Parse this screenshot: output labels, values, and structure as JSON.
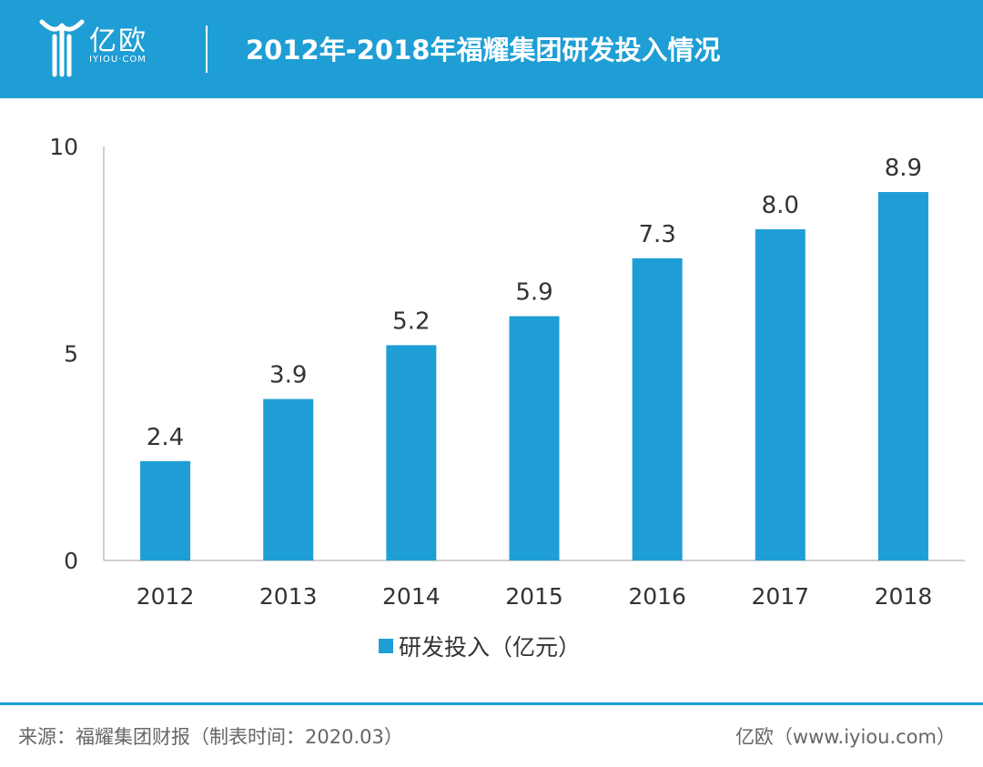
{
  "header": {
    "logo_name": "亿欧",
    "logo_sub": "IYIOU·COM",
    "title": "2012年-2018年福耀集团研发投入情况"
  },
  "chart_data": {
    "type": "bar",
    "title": "2012年-2018年福耀集团研发投入情况",
    "categories": [
      "2012",
      "2013",
      "2014",
      "2015",
      "2016",
      "2017",
      "2018"
    ],
    "series": [
      {
        "name": "研发投入（亿元）",
        "values": [
          2.4,
          3.9,
          5.2,
          5.9,
          7.3,
          8.0,
          8.9
        ]
      }
    ],
    "data_labels": [
      "2.4",
      "3.9",
      "5.2",
      "5.9",
      "7.3",
      "8.0",
      "8.9"
    ],
    "ylim": [
      0,
      10
    ],
    "yticks": [
      0,
      5,
      10
    ],
    "xlabel": "",
    "ylabel": "",
    "grid": false,
    "legend_position": "bottom-center",
    "bar_color": "#1e9ed4"
  },
  "legend": {
    "label": "研发投入（亿元）"
  },
  "footer": {
    "source": "来源：福耀集团财报（制表时间：2020.03）",
    "brand": "亿欧（www.iyiou.com）"
  },
  "colors": {
    "accent": "#1e9ed4",
    "text": "#333333",
    "muted": "#666666"
  }
}
